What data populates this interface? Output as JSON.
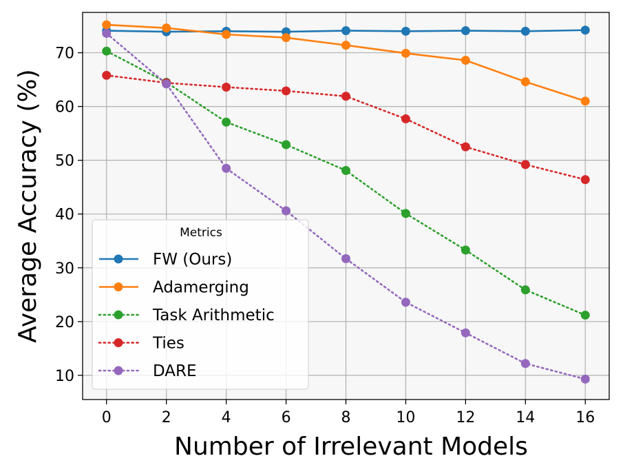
{
  "chart_data": {
    "type": "line",
    "title": "",
    "xlabel": "Number of Irrelevant Models",
    "ylabel": "Average Accuracy (%)",
    "x": [
      0,
      2,
      4,
      6,
      8,
      10,
      12,
      14,
      16
    ],
    "xlim": [
      -0.8,
      16.8
    ],
    "ylim": [
      5.5,
      77.5
    ],
    "x_ticks": [
      0,
      2,
      4,
      6,
      8,
      10,
      12,
      14,
      16
    ],
    "y_ticks": [
      10,
      20,
      30,
      40,
      50,
      60,
      70
    ],
    "grid": true,
    "legend": {
      "title": "Metrics",
      "placement": "lower-left"
    },
    "series": [
      {
        "name": "FW (Ours)",
        "color": "#1f77b4",
        "linestyle": "solid",
        "values": [
          74.1,
          73.9,
          74.0,
          73.9,
          74.1,
          74.0,
          74.1,
          74.0,
          74.2
        ]
      },
      {
        "name": "Adamerging",
        "color": "#ff7f0e",
        "linestyle": "solid",
        "values": [
          75.2,
          74.6,
          73.4,
          72.8,
          71.4,
          69.9,
          68.6,
          64.6,
          61.0
        ]
      },
      {
        "name": "Task Arithmetic",
        "color": "#2ca02c",
        "linestyle": "dotted",
        "values": [
          70.3,
          64.5,
          57.1,
          52.9,
          48.1,
          40.1,
          33.3,
          25.9,
          21.2
        ]
      },
      {
        "name": "Ties",
        "color": "#d62728",
        "linestyle": "dotted",
        "values": [
          65.8,
          64.4,
          63.6,
          62.9,
          61.9,
          57.7,
          52.5,
          49.2,
          46.4
        ]
      },
      {
        "name": "DARE",
        "color": "#9467bd",
        "linestyle": "dotted",
        "values": [
          73.6,
          64.2,
          48.5,
          40.6,
          31.7,
          23.6,
          17.9,
          12.2,
          9.3
        ]
      }
    ]
  }
}
